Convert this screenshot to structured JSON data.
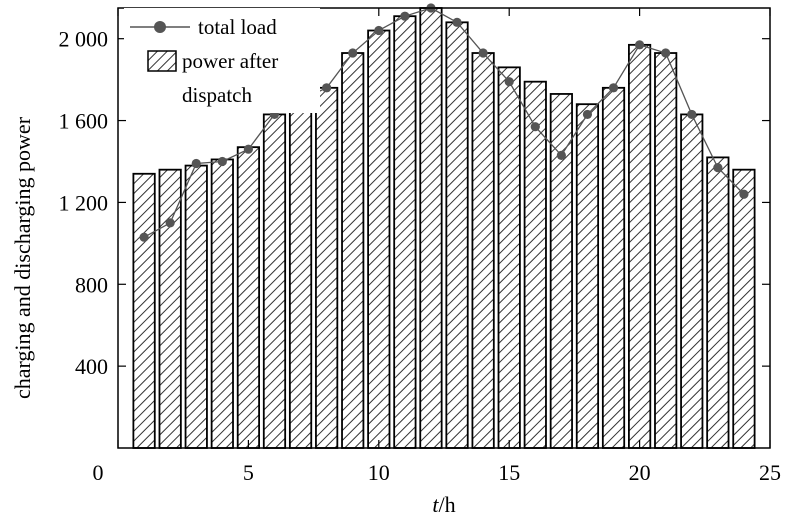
{
  "chart_data": {
    "type": "bar",
    "title": "",
    "xlabel_italic": "t",
    "xlabel_rest": "/h",
    "ylabel": "charging and discharging power",
    "x": [
      1,
      2,
      3,
      4,
      5,
      6,
      7,
      8,
      9,
      10,
      11,
      12,
      13,
      14,
      15,
      16,
      17,
      18,
      19,
      20,
      21,
      22,
      23,
      24
    ],
    "xlim": [
      0,
      25
    ],
    "ylim": [
      0,
      2150
    ],
    "x_ticks": [
      0,
      5,
      10,
      15,
      20,
      25
    ],
    "x_tick_labels": [
      "0",
      "5",
      "10",
      "15",
      "20",
      "25"
    ],
    "y_ticks": [
      400,
      800,
      1200,
      1600,
      2000
    ],
    "y_tick_labels": [
      "400",
      "800",
      "1 200",
      "1 600",
      "2 000"
    ],
    "grid": false,
    "legend_position": "top-left",
    "series": [
      {
        "name": "total load",
        "kind": "line-marker",
        "color": "#555555",
        "values": [
          1030,
          1100,
          1390,
          1400,
          1460,
          1630,
          1700,
          1760,
          1930,
          2040,
          2110,
          2150,
          2080,
          1930,
          1790,
          1570,
          1430,
          1630,
          1760,
          1970,
          1930,
          1630,
          1370,
          1240
        ]
      },
      {
        "name": "power after dispatch",
        "kind": "bar",
        "pattern": "diagonal-hatch",
        "color": "#333333",
        "values": [
          1340,
          1360,
          1380,
          1410,
          1470,
          1630,
          1700,
          1760,
          1930,
          2040,
          2110,
          2150,
          2080,
          1930,
          1860,
          1790,
          1730,
          1680,
          1760,
          1970,
          1930,
          1630,
          1420,
          1360
        ]
      }
    ],
    "legend": {
      "line_label": "total load",
      "bar_label_line1": "power after",
      "bar_label_line2": "dispatch"
    }
  }
}
